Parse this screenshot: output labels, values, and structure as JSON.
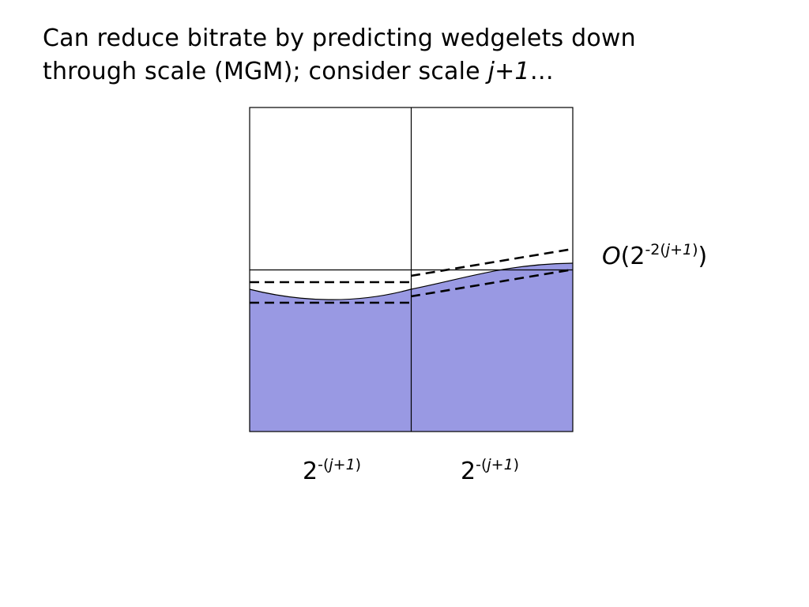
{
  "title": {
    "line1": "Can reduce bitrate by predicting wedgelets down",
    "line2_prefix": "through scale (MGM); consider scale ",
    "line2_italic": "j+1",
    "line2_suffix": "…"
  },
  "scale_labels": [
    {
      "base": "2",
      "sup_prefix": "-(",
      "sup_italic": "j+1",
      "sup_suffix": ")"
    },
    {
      "base": "2",
      "sup_prefix": "-(",
      "sup_italic": "j+1",
      "sup_suffix": ")"
    }
  ],
  "error_label": {
    "big_o": "O",
    "open": "(",
    "base": "2",
    "sup_prefix": "-2(",
    "sup_italic": "j+1",
    "sup_suffix": ")",
    "close": ")"
  },
  "colors": {
    "fill": "#9999e3",
    "stroke": "#000000",
    "background": "#ffffff"
  }
}
